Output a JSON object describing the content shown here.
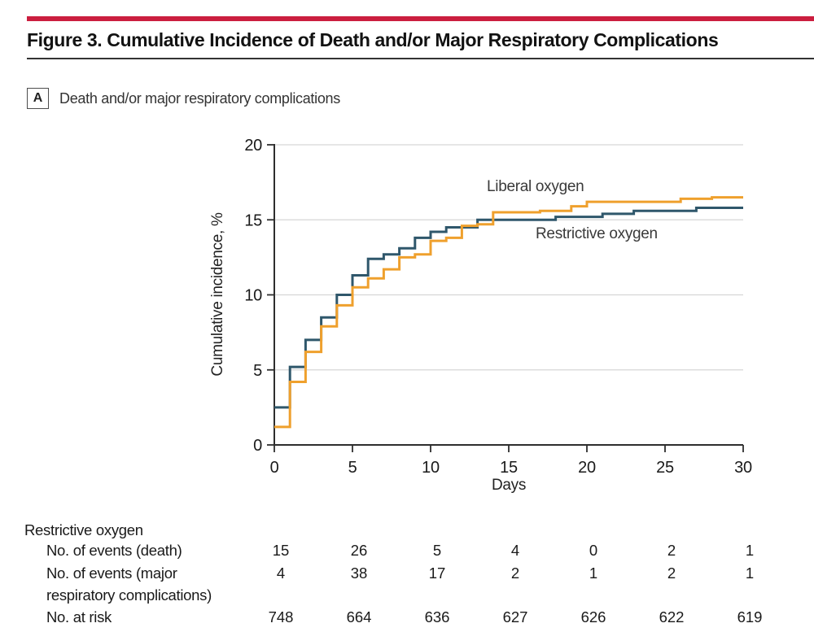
{
  "figure": {
    "title": "Figure 3. Cumulative Incidence of Death and/or Major Respiratory Complications",
    "panel": {
      "label": "A",
      "title": "Death and/or major respiratory complications"
    }
  },
  "colors": {
    "accent_red": "#cb1e3f",
    "liberal_orange": "#efa02d",
    "restrictive_teal": "#2f576b",
    "gridline_gray": "#d6d6d6",
    "axis_dark": "#2e2e2e"
  },
  "chart_data": {
    "type": "line",
    "subtype": "step-after",
    "title": "",
    "xlabel": "Days",
    "ylabel": "Cumulative incidence, %",
    "xlim": [
      0,
      30
    ],
    "ylim": [
      0,
      20
    ],
    "xticks": [
      0,
      5,
      10,
      15,
      20,
      25,
      30
    ],
    "yticks": [
      0,
      5,
      10,
      15,
      20
    ],
    "grid": "horizontal",
    "legend_position": "annotated-inline",
    "series": [
      {
        "name": "Liberal oxygen",
        "color": "#efa02d",
        "points": [
          [
            0,
            1.2
          ],
          [
            1,
            4.2
          ],
          [
            2,
            6.2
          ],
          [
            3,
            7.9
          ],
          [
            4,
            9.3
          ],
          [
            5,
            10.5
          ],
          [
            6,
            11.1
          ],
          [
            7,
            11.7
          ],
          [
            8,
            12.5
          ],
          [
            9,
            12.7
          ],
          [
            10,
            13.6
          ],
          [
            11,
            13.8
          ],
          [
            12,
            14.6
          ],
          [
            13,
            14.7
          ],
          [
            14,
            15.5
          ],
          [
            17,
            15.6
          ],
          [
            19,
            15.9
          ],
          [
            20,
            16.2
          ],
          [
            26,
            16.4
          ],
          [
            28,
            16.5
          ],
          [
            30,
            16.5
          ]
        ]
      },
      {
        "name": "Restrictive oxygen",
        "color": "#2f576b",
        "points": [
          [
            0,
            2.5
          ],
          [
            1,
            5.2
          ],
          [
            2,
            7.0
          ],
          [
            3,
            8.5
          ],
          [
            4,
            10.0
          ],
          [
            5,
            11.3
          ],
          [
            6,
            12.4
          ],
          [
            7,
            12.7
          ],
          [
            8,
            13.1
          ],
          [
            9,
            13.8
          ],
          [
            10,
            14.2
          ],
          [
            11,
            14.5
          ],
          [
            13,
            15.0
          ],
          [
            18,
            15.2
          ],
          [
            21,
            15.4
          ],
          [
            23,
            15.6
          ],
          [
            27,
            15.8
          ],
          [
            30,
            15.8
          ]
        ]
      }
    ]
  },
  "risk_table": {
    "group": "Restrictive oxygen",
    "days": [
      0,
      5,
      10,
      15,
      20,
      25,
      30
    ],
    "rows": [
      {
        "label": "No. of events (death)",
        "label2": "",
        "values": [
          "15",
          "26",
          "5",
          "4",
          "0",
          "2",
          "1"
        ]
      },
      {
        "label": "No. of events (major",
        "label2": "respiratory complications)",
        "values": [
          "4",
          "38",
          "17",
          "2",
          "1",
          "2",
          "1"
        ]
      },
      {
        "label": "No. at risk",
        "label2": "",
        "values": [
          "748",
          "664",
          "636",
          "627",
          "626",
          "622",
          "619"
        ]
      }
    ]
  }
}
